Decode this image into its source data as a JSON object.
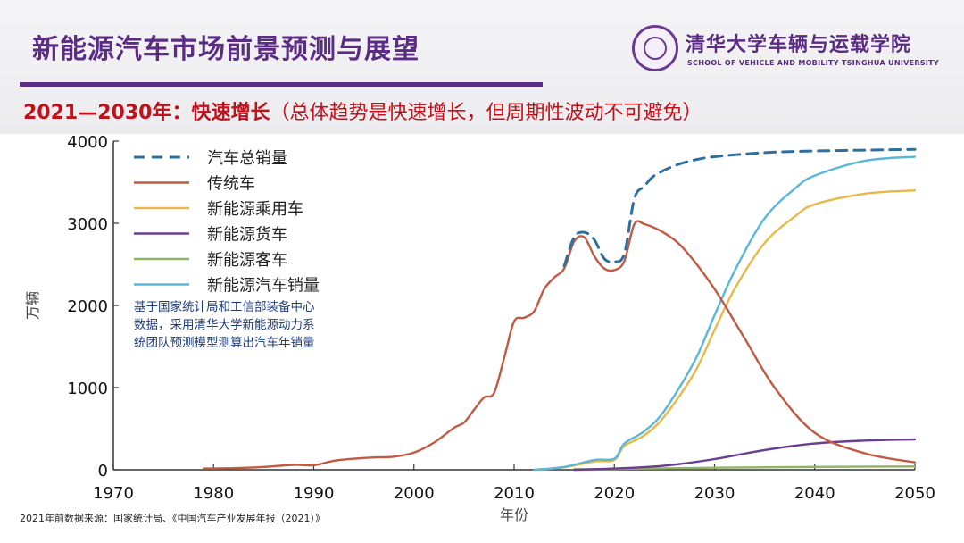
{
  "header": {
    "title": "新能源汽车市场前景预测与展望",
    "logo_cn": "清华大学车辆与运载学院",
    "logo_en": "SCHOOL OF VEHICLE AND MOBILITY TSINGHUA UNIVERSITY",
    "subtitle_strong": "2021—2030年：快速增长",
    "subtitle_note": "（总体趋势是快速增长，但周期性波动不可避免）"
  },
  "chart_data": {
    "type": "line",
    "xlabel": "年份",
    "ylabel": "万辆",
    "xlim": [
      1970,
      2050
    ],
    "ylim": [
      0,
      4000
    ],
    "x_ticks": [
      1970,
      1980,
      1990,
      2000,
      2010,
      2020,
      2030,
      2040,
      2050
    ],
    "y_ticks": [
      0,
      1000,
      2000,
      3000,
      4000
    ],
    "legend_position": "top-left",
    "annotation": [
      "基于国家统计局和工信部装备中心",
      "数据，采用清华大学新能源动力系",
      "统团队预测模型测算出汽车年销量"
    ],
    "series": [
      {
        "name": "汽车总销量",
        "color": "#2e6f9e",
        "style": "dashed",
        "points": [
          [
            2015,
            2480
          ],
          [
            2016,
            2830
          ],
          [
            2017,
            2890
          ],
          [
            2018,
            2800
          ],
          [
            2019,
            2570
          ],
          [
            2020,
            2530
          ],
          [
            2021,
            2630
          ],
          [
            2022,
            3300
          ],
          [
            2023,
            3450
          ],
          [
            2024,
            3580
          ],
          [
            2026,
            3700
          ],
          [
            2028,
            3770
          ],
          [
            2030,
            3810
          ],
          [
            2035,
            3860
          ],
          [
            2040,
            3880
          ],
          [
            2045,
            3890
          ],
          [
            2050,
            3900
          ]
        ]
      },
      {
        "name": "传统车",
        "color": "#c05a42",
        "style": "solid",
        "points": [
          [
            1979,
            15
          ],
          [
            1982,
            20
          ],
          [
            1985,
            35
          ],
          [
            1988,
            60
          ],
          [
            1990,
            55
          ],
          [
            1992,
            110
          ],
          [
            1994,
            135
          ],
          [
            1996,
            150
          ],
          [
            1998,
            160
          ],
          [
            2000,
            210
          ],
          [
            2002,
            330
          ],
          [
            2004,
            510
          ],
          [
            2005,
            575
          ],
          [
            2006,
            730
          ],
          [
            2007,
            880
          ],
          [
            2008,
            935
          ],
          [
            2009,
            1360
          ],
          [
            2010,
            1805
          ],
          [
            2011,
            1850
          ],
          [
            2012,
            1930
          ],
          [
            2013,
            2200
          ],
          [
            2014,
            2340
          ],
          [
            2015,
            2450
          ],
          [
            2016,
            2780
          ],
          [
            2017,
            2830
          ],
          [
            2018,
            2600
          ],
          [
            2019,
            2450
          ],
          [
            2020,
            2430
          ],
          [
            2021,
            2540
          ],
          [
            2022,
            2990
          ],
          [
            2023,
            2990
          ],
          [
            2025,
            2880
          ],
          [
            2027,
            2680
          ],
          [
            2030,
            2200
          ],
          [
            2033,
            1600
          ],
          [
            2036,
            1000
          ],
          [
            2040,
            450
          ],
          [
            2045,
            200
          ],
          [
            2050,
            90
          ]
        ]
      },
      {
        "name": "新能源乘用车",
        "color": "#e8b84a",
        "style": "solid",
        "points": [
          [
            2012,
            0
          ],
          [
            2015,
            30
          ],
          [
            2018,
            100
          ],
          [
            2020,
            120
          ],
          [
            2021,
            290
          ],
          [
            2023,
            420
          ],
          [
            2025,
            650
          ],
          [
            2028,
            1180
          ],
          [
            2030,
            1700
          ],
          [
            2032,
            2200
          ],
          [
            2035,
            2760
          ],
          [
            2038,
            3080
          ],
          [
            2040,
            3230
          ],
          [
            2045,
            3360
          ],
          [
            2050,
            3400
          ]
        ]
      },
      {
        "name": "新能源货车",
        "color": "#6a3d8f",
        "style": "solid",
        "points": [
          [
            2016,
            0
          ],
          [
            2020,
            15
          ],
          [
            2025,
            50
          ],
          [
            2030,
            130
          ],
          [
            2035,
            240
          ],
          [
            2040,
            320
          ],
          [
            2045,
            355
          ],
          [
            2050,
            370
          ]
        ]
      },
      {
        "name": "新能源客车",
        "color": "#8fb360",
        "style": "solid",
        "points": [
          [
            2016,
            5
          ],
          [
            2020,
            10
          ],
          [
            2030,
            25
          ],
          [
            2040,
            35
          ],
          [
            2050,
            40
          ]
        ]
      },
      {
        "name": "新能源汽车销量",
        "color": "#5ab7d9",
        "style": "solid",
        "points": [
          [
            2012,
            0
          ],
          [
            2015,
            35
          ],
          [
            2018,
            120
          ],
          [
            2020,
            135
          ],
          [
            2021,
            320
          ],
          [
            2023,
            470
          ],
          [
            2025,
            720
          ],
          [
            2028,
            1320
          ],
          [
            2030,
            1880
          ],
          [
            2032,
            2420
          ],
          [
            2035,
            3060
          ],
          [
            2038,
            3420
          ],
          [
            2040,
            3580
          ],
          [
            2045,
            3760
          ],
          [
            2050,
            3810
          ]
        ]
      }
    ]
  },
  "footer": {
    "source": "2021年前数据来源：国家统计局、《中国汽车产业发展年报（2021）》"
  }
}
